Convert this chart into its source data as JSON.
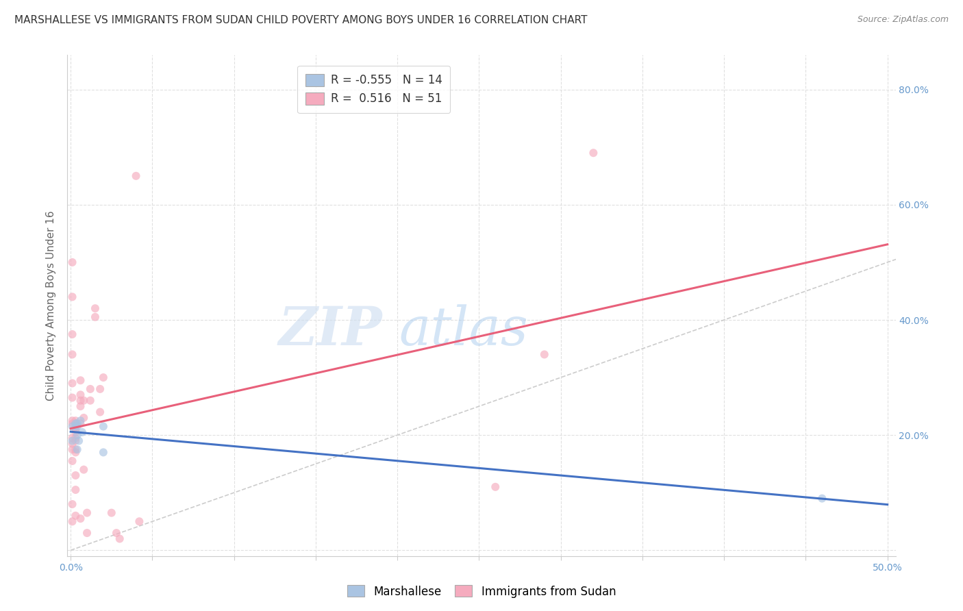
{
  "title": "MARSHALLESE VS IMMIGRANTS FROM SUDAN CHILD POVERTY AMONG BOYS UNDER 16 CORRELATION CHART",
  "source": "Source: ZipAtlas.com",
  "ylabel": "Child Poverty Among Boys Under 16",
  "xlim": [
    -0.002,
    0.505
  ],
  "ylim": [
    -0.01,
    0.86
  ],
  "xticks": [
    0.0,
    0.05,
    0.1,
    0.15,
    0.2,
    0.25,
    0.3,
    0.35,
    0.4,
    0.45,
    0.5
  ],
  "yticks": [
    0.0,
    0.2,
    0.4,
    0.6,
    0.8
  ],
  "marshallese_R": -0.555,
  "marshallese_N": 14,
  "sudan_R": 0.516,
  "sudan_N": 51,
  "marshallese_color": "#aac4e2",
  "sudan_color": "#f5abbe",
  "marshallese_line_color": "#4472c4",
  "sudan_line_color": "#e8607a",
  "diagonal_color": "#cccccc",
  "background_color": "#ffffff",
  "grid_color": "#e0e0e0",
  "marshallese_x": [
    0.001,
    0.001,
    0.003,
    0.003,
    0.004,
    0.004,
    0.004,
    0.004,
    0.005,
    0.006,
    0.007,
    0.02,
    0.02,
    0.46
  ],
  "marshallese_y": [
    0.215,
    0.19,
    0.22,
    0.215,
    0.22,
    0.215,
    0.2,
    0.175,
    0.19,
    0.225,
    0.205,
    0.215,
    0.17,
    0.09
  ],
  "sudan_x": [
    0.001,
    0.001,
    0.001,
    0.001,
    0.001,
    0.001,
    0.001,
    0.001,
    0.001,
    0.001,
    0.001,
    0.001,
    0.001,
    0.001,
    0.003,
    0.003,
    0.003,
    0.003,
    0.003,
    0.003,
    0.003,
    0.003,
    0.003,
    0.003,
    0.003,
    0.006,
    0.006,
    0.006,
    0.006,
    0.006,
    0.006,
    0.008,
    0.008,
    0.008,
    0.01,
    0.01,
    0.012,
    0.012,
    0.015,
    0.015,
    0.018,
    0.018,
    0.02,
    0.025,
    0.028,
    0.03,
    0.04,
    0.042,
    0.26,
    0.29,
    0.32
  ],
  "sudan_y": [
    0.5,
    0.44,
    0.375,
    0.34,
    0.29,
    0.265,
    0.225,
    0.22,
    0.195,
    0.185,
    0.175,
    0.155,
    0.08,
    0.05,
    0.225,
    0.22,
    0.21,
    0.205,
    0.195,
    0.19,
    0.175,
    0.17,
    0.13,
    0.105,
    0.06,
    0.295,
    0.27,
    0.26,
    0.25,
    0.22,
    0.055,
    0.26,
    0.23,
    0.14,
    0.065,
    0.03,
    0.28,
    0.26,
    0.42,
    0.405,
    0.28,
    0.24,
    0.3,
    0.065,
    0.03,
    0.02,
    0.65,
    0.05,
    0.11,
    0.34,
    0.69
  ],
  "marker_size": 75,
  "marker_alpha": 0.65,
  "legend_fontsize": 12,
  "title_fontsize": 11,
  "axis_label_fontsize": 11,
  "tick_fontsize": 10,
  "tick_color": "#6699cc",
  "source_fontsize": 9,
  "source_color": "#888888"
}
